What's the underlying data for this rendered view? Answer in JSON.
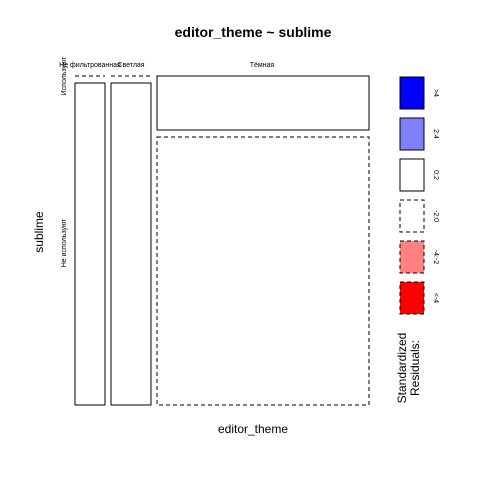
{
  "chart_data": {
    "type": "mosaic",
    "title": "editor_theme ~ sublime",
    "xlabel": "editor_theme",
    "ylabel": "sublime",
    "x_categories": [
      "Не фильтрованная",
      "Светлая",
      "Тёмная"
    ],
    "y_categories": [
      "Используют",
      "Не используют"
    ],
    "cells": [
      {
        "x": "Не фильтрованная",
        "y": "Используют",
        "residual_class": "<-2:0"
      },
      {
        "x": "Не фильтрованная",
        "y": "Не используют",
        "residual_class": "0:2"
      },
      {
        "x": "Светлая",
        "y": "Используют",
        "residual_class": "<-2:0"
      },
      {
        "x": "Светлая",
        "y": "Не используют",
        "residual_class": "0:2"
      },
      {
        "x": "Тёмная",
        "y": "Используют",
        "residual_class": "0:2"
      },
      {
        "x": "Тёмная",
        "y": "Не используют",
        "residual_class": "-2:0"
      }
    ],
    "legend": {
      "title_line1": "Standardized",
      "title_line2": "Residuals:",
      "items": [
        {
          "label": ">4",
          "color": "#0000ff",
          "dashed": false
        },
        {
          "label": "2:4",
          "color": "#8080ff",
          "dashed": false
        },
        {
          "label": "0:2",
          "color": "#ffffff",
          "dashed": false
        },
        {
          "label": "-2:0",
          "color": "#ffffff",
          "dashed": true
        },
        {
          "label": "-4:-2",
          "color": "#ff8080",
          "dashed": true
        },
        {
          "label": "<-4",
          "color": "#ff0000",
          "dashed": true
        }
      ]
    }
  }
}
